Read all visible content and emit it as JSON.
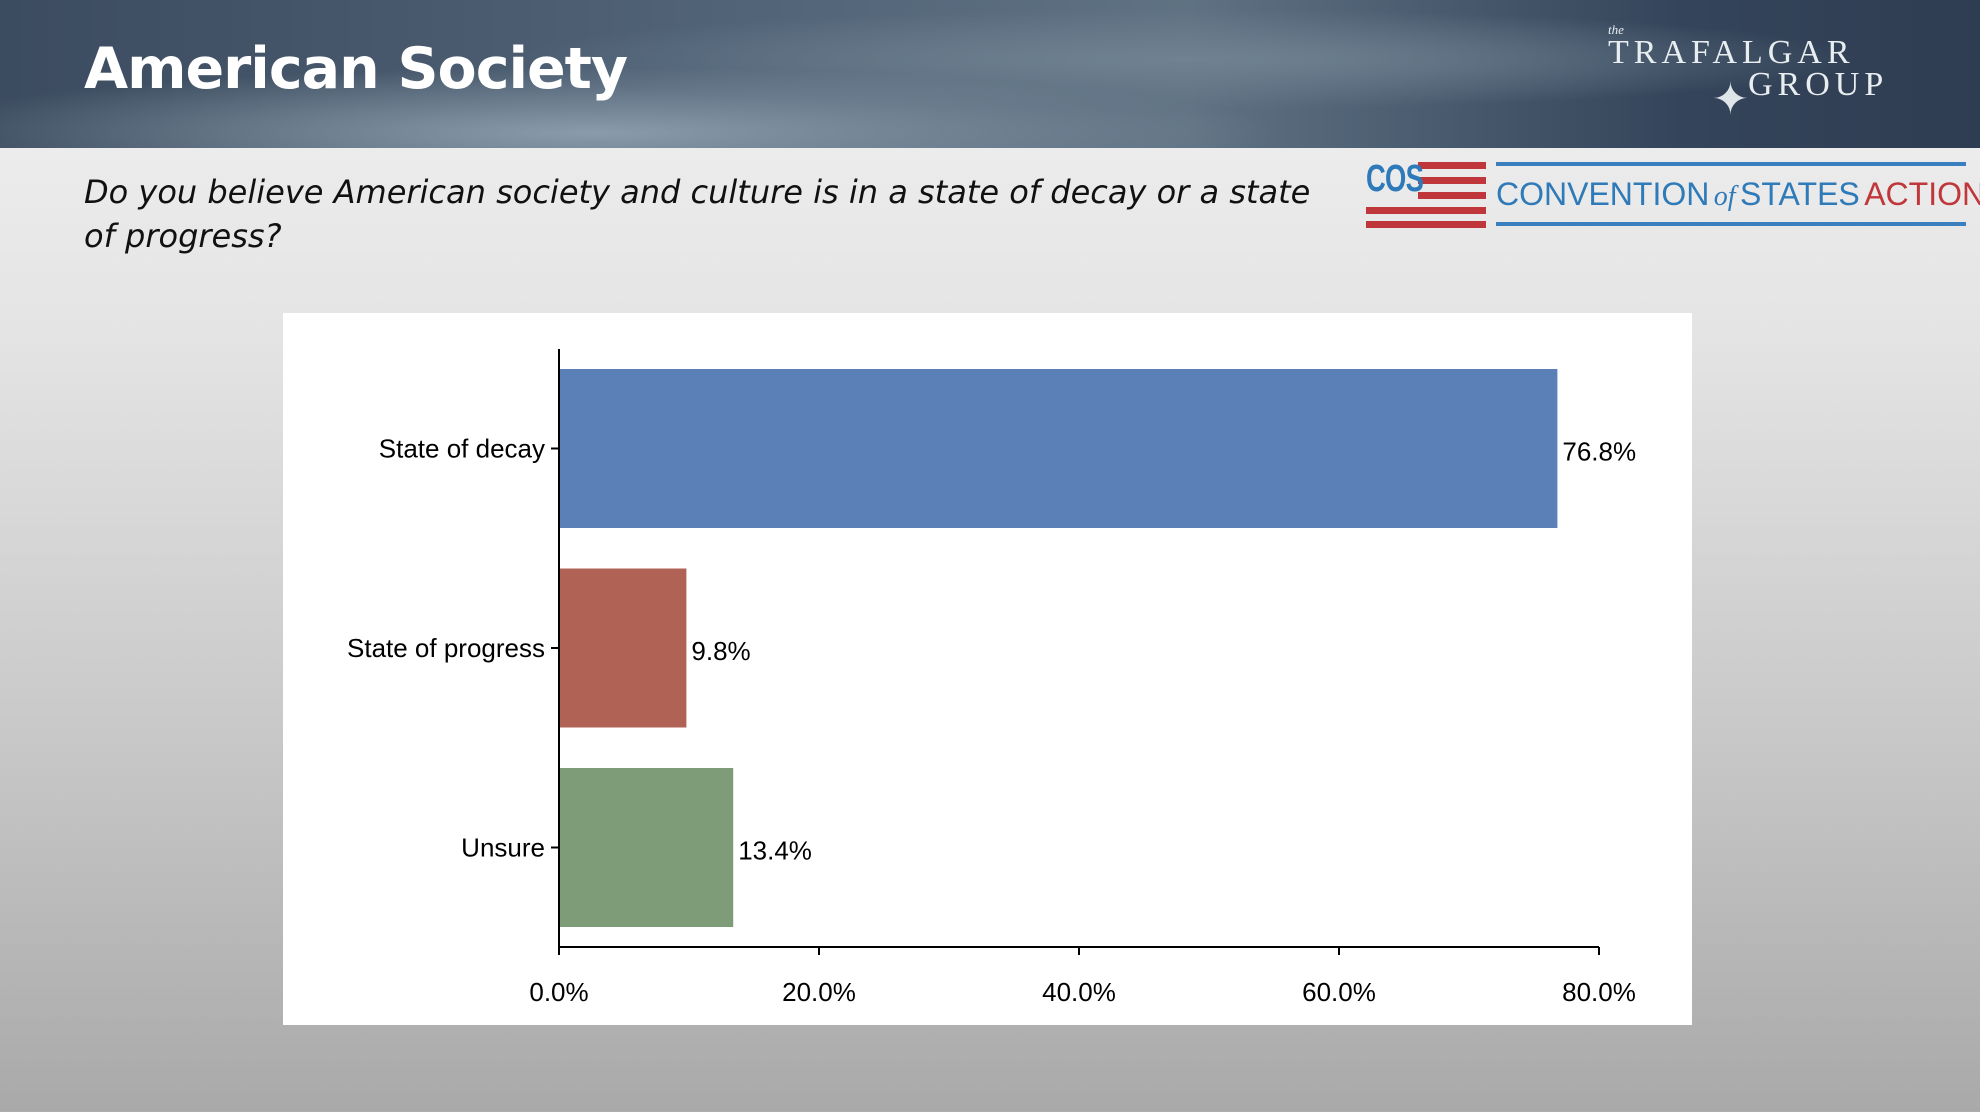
{
  "header": {
    "title": "American Society"
  },
  "logos": {
    "trafalgar": {
      "the": "the",
      "line1": "TRAFALGAR",
      "line2": "GROUP",
      "text": "the TRAFALGAR GROUP"
    },
    "cos": {
      "abbr": "COS",
      "name_part1": "CONVENTION",
      "name_of": "of",
      "name_part2": "STATES",
      "name_part3": "ACTION"
    }
  },
  "question": "Do you believe American society and culture is in a state of decay or a state of progress?",
  "colors": {
    "decay": "#5b80b8",
    "progress": "#b06254",
    "unsure": "#7d9c77",
    "cos_blue": "#2f7ab8",
    "cos_red": "#c0373b"
  },
  "chart_data": {
    "type": "bar",
    "orientation": "horizontal",
    "categories": [
      "State of decay",
      "State of progress",
      "Unsure"
    ],
    "values": [
      76.8,
      9.8,
      13.4
    ],
    "data_labels": [
      "76.8%",
      "9.8%",
      "13.4%"
    ],
    "xlim": [
      0,
      80
    ],
    "xticks": [
      0,
      20,
      40,
      60,
      80
    ],
    "xtick_labels": [
      "0.0%",
      "20.0%",
      "40.0%",
      "60.0%",
      "80.0%"
    ],
    "grid": false,
    "title": "",
    "xlabel": "",
    "ylabel": ""
  }
}
